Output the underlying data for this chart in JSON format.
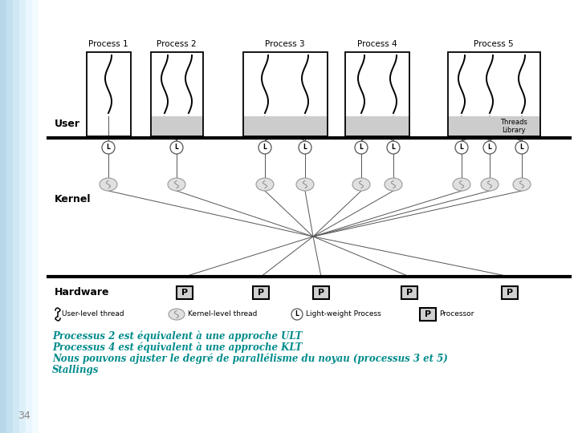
{
  "bg_color": "#ffffff",
  "teal_color": "#008B8B",
  "title_number": "34",
  "title_color": "#888888",
  "process_labels": [
    "Process 1",
    "Process 2",
    "Process 3",
    "Process 4",
    "Process 5"
  ],
  "legend_items": [
    "User-level thread",
    "Kernel-level thread",
    "Light-weight Process",
    "Processor"
  ],
  "text_lines": [
    "Processus 2 est équivalent à une approche ULT",
    "Processus 4 est équivalent à une approche KLT",
    "Nous pouvons ajuster le degré de parallélisme du noyau (processus 3 et 5)",
    "Stallings"
  ],
  "threads_library_label": "Threads\nLibrary",
  "left_grad_colors": [
    "#b8d8e8",
    "#c4e0ee",
    "#d0e8f4",
    "#ddf0fa",
    "#eaf6fe",
    "#f4fbff",
    "#ffffff"
  ],
  "left_grad_widths": [
    8,
    8,
    8,
    8,
    8,
    8,
    14
  ],
  "diagram_bg": "#f0f0f0"
}
